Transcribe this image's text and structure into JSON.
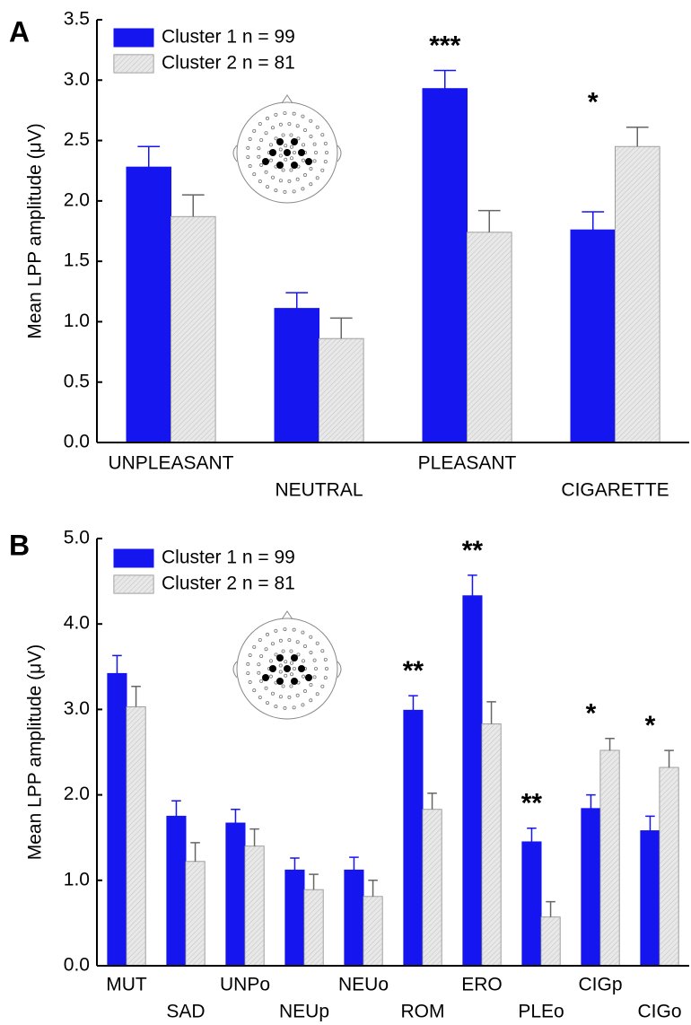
{
  "chart_data": [
    {
      "type": "bar",
      "panel_label": "A",
      "y_label": "Mean LPP amplitude (μV)",
      "categories": [
        "UNPLEASANT",
        "NEUTRAL",
        "PLEASANT",
        "CIGARETTE"
      ],
      "series": [
        {
          "name": "Cluster 1 n = 99",
          "color": "#1515f0",
          "values": [
            2.28,
            1.11,
            2.93,
            1.76
          ],
          "errors": [
            0.17,
            0.13,
            0.15,
            0.15
          ]
        },
        {
          "name": "Cluster 2 n = 81",
          "color": "#d6d6d6",
          "values": [
            1.87,
            0.86,
            1.74,
            2.45
          ],
          "errors": [
            0.18,
            0.17,
            0.18,
            0.16
          ]
        }
      ],
      "annotations": [
        null,
        null,
        "***",
        "*"
      ],
      "ylim": [
        0,
        3.5
      ],
      "yticks": [
        {
          "value": 0,
          "label": "0.0"
        },
        {
          "value": 0.5,
          "label": "0.5"
        },
        {
          "value": 1,
          "label": "1.0"
        },
        {
          "value": 1.5,
          "label": "1.5"
        },
        {
          "value": 2,
          "label": "2.0"
        },
        {
          "value": 2.5,
          "label": "2.5"
        },
        {
          "value": 3,
          "label": "3.0"
        },
        {
          "value": 3.5,
          "label": "3.5"
        }
      ]
    },
    {
      "type": "bar",
      "panel_label": "B",
      "y_label": "Mean LPP amplitude (μV)",
      "categories": [
        "MUT",
        "SAD",
        "UNPo",
        "NEUp",
        "NEUo",
        "ROM",
        "ERO",
        "PLEo",
        "CIGp",
        "CIGo"
      ],
      "series": [
        {
          "name": "Cluster 1 n = 99",
          "color": "#1515f0",
          "values": [
            3.42,
            1.75,
            1.67,
            1.12,
            1.12,
            2.99,
            4.33,
            1.45,
            1.84,
            1.58
          ],
          "errors": [
            0.21,
            0.18,
            0.16,
            0.14,
            0.15,
            0.17,
            0.24,
            0.16,
            0.16,
            0.17
          ]
        },
        {
          "name": "Cluster 2 n = 81",
          "color": "#d6d6d6",
          "values": [
            3.03,
            1.22,
            1.4,
            0.89,
            0.81,
            1.83,
            2.83,
            0.57,
            2.52,
            2.32
          ],
          "errors": [
            0.24,
            0.22,
            0.2,
            0.18,
            0.19,
            0.19,
            0.26,
            0.18,
            0.14,
            0.2
          ]
        }
      ],
      "annotations": [
        null,
        null,
        null,
        null,
        null,
        "**",
        "**",
        "**",
        "*",
        "*"
      ],
      "ylim": [
        0,
        5
      ],
      "yticks": [
        {
          "value": 0,
          "label": "0.0"
        },
        {
          "value": 1,
          "label": "1.0"
        },
        {
          "value": 2,
          "label": "2.0"
        },
        {
          "value": 3,
          "label": "3.0"
        },
        {
          "value": 4,
          "label": "4.0"
        },
        {
          "value": 5,
          "label": "5.0"
        }
      ]
    }
  ]
}
